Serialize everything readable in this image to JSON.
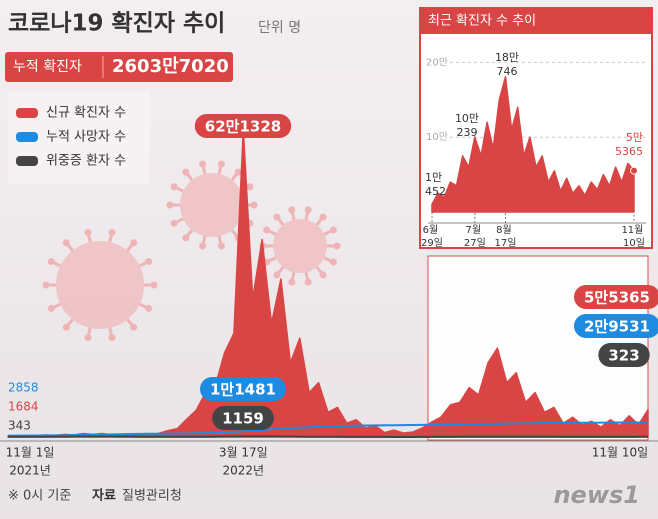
{
  "header": {
    "title": "코로나19 확진자 추이",
    "unit": "단위 명",
    "total_label": "누적 확진자",
    "total_value": "2603만7020"
  },
  "chart_data": [
    {
      "type": "line",
      "categories": [
        "11월 1일",
        null,
        null,
        null,
        null,
        null,
        null,
        null,
        null,
        null,
        null,
        null,
        null,
        null,
        null,
        null,
        null,
        null,
        null,
        null,
        null,
        null,
        null,
        null,
        null,
        "3월 17일",
        null,
        null,
        null,
        null,
        null,
        null,
        null,
        null,
        null,
        null,
        null,
        null,
        null,
        null,
        null,
        null,
        null,
        null,
        null,
        null,
        null,
        null,
        null,
        null,
        null,
        null,
        null,
        null,
        null,
        null,
        null,
        null,
        null,
        null,
        null,
        null,
        null,
        null,
        null,
        null,
        null,
        null,
        "11월 10일"
      ],
      "category_years": [
        "2021년",
        null,
        null,
        null,
        null,
        null,
        null,
        null,
        null,
        null,
        null,
        null,
        null,
        null,
        null,
        null,
        null,
        null,
        null,
        null,
        null,
        null,
        null,
        null,
        null,
        "2022년",
        null,
        null,
        null,
        null,
        null,
        null,
        null,
        null,
        null,
        null,
        null,
        null,
        null,
        null,
        null,
        null,
        null,
        null,
        null,
        null,
        null,
        null,
        null,
        null,
        null,
        null,
        null,
        null,
        null,
        null,
        null,
        null,
        null,
        null,
        null,
        null,
        null,
        null,
        null,
        null,
        null,
        null,
        null
      ],
      "ylim": [
        0,
        650000
      ],
      "series": [
        {
          "name": "신규 확진자 수",
          "color": "#d94545",
          "area": true,
          "values": [
            1684,
            1800,
            2600,
            2000,
            4000,
            3000,
            5200,
            4300,
            7100,
            5300,
            7000,
            4500,
            5800,
            3800,
            4400,
            3000,
            7500,
            13000,
            17000,
            36000,
            54000,
            90000,
            102000,
            170000,
            210000,
            621328,
            280000,
            400000,
            230000,
            320000,
            150000,
            200000,
            90000,
            110000,
            50000,
            60000,
            28000,
            35000,
            18000,
            23000,
            9000,
            14000,
            8000,
            10000,
            18000,
            30000,
            40000,
            65000,
            70000,
            100000,
            85000,
            150000,
            180000,
            110000,
            130000,
            70000,
            90000,
            50000,
            60000,
            28000,
            40000,
            24000,
            32000,
            20000,
            35000,
            23000,
            43000,
            25000,
            55365
          ],
          "value_labels": [
            null,
            null,
            null,
            null,
            null,
            null,
            null,
            null,
            null,
            null,
            null,
            null,
            null,
            null,
            null,
            null,
            null,
            null,
            null,
            null,
            null,
            null,
            null,
            null,
            null,
            "62만1328",
            null,
            null,
            null,
            null,
            null,
            null,
            null,
            null,
            null,
            null,
            null,
            null,
            null,
            null,
            null,
            null,
            null,
            null,
            null,
            null,
            null,
            null,
            null,
            null,
            null,
            null,
            null,
            null,
            null,
            null,
            null,
            null,
            null,
            null,
            null,
            null,
            null,
            null,
            null,
            null,
            null,
            null,
            "5만5365"
          ]
        },
        {
          "name": "누적 사망자 수",
          "color": "#1f8be0",
          "area": false,
          "values": [
            2858,
            2900,
            2970,
            3060,
            3180,
            3340,
            3540,
            3800,
            4100,
            4450,
            4900,
            5300,
            5700,
            6000,
            6250,
            6450,
            6650,
            6850,
            7050,
            7300,
            7600,
            8000,
            8600,
            9300,
            10300,
            11481,
            12800,
            14200,
            15600,
            16900,
            18000,
            19000,
            19900,
            20700,
            21400,
            22000,
            22500,
            22900,
            23200,
            23500,
            23750,
            23950,
            24150,
            24350,
            24550,
            24750,
            24950,
            25200,
            25450,
            25750,
            26050,
            26400,
            26750,
            27100,
            27450,
            27750,
            28000,
            28250,
            28450,
            28650,
            28800,
            28950,
            29050,
            29150,
            29250,
            29320,
            29400,
            29460,
            29531
          ],
          "value_labels": [
            null,
            null,
            null,
            null,
            null,
            null,
            null,
            null,
            null,
            null,
            null,
            null,
            null,
            null,
            null,
            null,
            null,
            null,
            null,
            null,
            null,
            null,
            null,
            null,
            null,
            "1만1481",
            null,
            null,
            null,
            null,
            null,
            null,
            null,
            null,
            null,
            null,
            null,
            null,
            null,
            null,
            null,
            null,
            null,
            null,
            null,
            null,
            null,
            null,
            null,
            null,
            null,
            null,
            null,
            null,
            null,
            null,
            null,
            null,
            null,
            null,
            null,
            null,
            null,
            null,
            null,
            null,
            null,
            null,
            "2만9531"
          ]
        },
        {
          "name": "위중증 환자 수",
          "color": "#444444",
          "area": false,
          "values": [
            343,
            400,
            480,
            580,
            700,
            800,
            900,
            1000,
            1050,
            1080,
            1050,
            1000,
            900,
            750,
            600,
            450,
            420,
            400,
            420,
            470,
            550,
            650,
            800,
            950,
            1050,
            1159,
            1250,
            1250,
            1200,
            1100,
            980,
            850,
            700,
            550,
            420,
            330,
            250,
            200,
            160,
            130,
            110,
            100,
            95,
            100,
            120,
            160,
            220,
            280,
            340,
            400,
            450,
            500,
            550,
            560,
            540,
            500,
            450,
            400,
            350,
            300,
            260,
            230,
            240,
            250,
            270,
            280,
            300,
            310,
            323
          ]
        }
      ]
    },
    {
      "type": "area",
      "title": "최근 확진자 수 추이",
      "color": "#d94545",
      "categories": [
        "6월 29일",
        null,
        null,
        null,
        null,
        null,
        null,
        "7월 27일",
        null,
        null,
        null,
        null,
        "8월 17일",
        null,
        null,
        null,
        null,
        null,
        null,
        null,
        null,
        null,
        null,
        null,
        null,
        null,
        null,
        null,
        null,
        null,
        null,
        null,
        null,
        "11월 10일"
      ],
      "ylim": [
        0,
        230000
      ],
      "yticks": [
        {
          "value": 200000,
          "label": "20만"
        },
        {
          "value": 100000,
          "label": "10만"
        }
      ],
      "grid": true,
      "values": [
        10452,
        25000,
        20000,
        40000,
        35000,
        75000,
        60000,
        100239,
        75000,
        120000,
        85000,
        150000,
        180746,
        110000,
        140000,
        75000,
        100000,
        60000,
        75000,
        40000,
        55000,
        28000,
        45000,
        25000,
        35000,
        22000,
        40000,
        30000,
        50000,
        35000,
        60000,
        40000,
        65000,
        55365
      ],
      "value_labels": [
        "1만452",
        null,
        null,
        null,
        null,
        null,
        null,
        "10만239",
        null,
        null,
        null,
        null,
        "18만746",
        null,
        null,
        null,
        null,
        null,
        null,
        null,
        null,
        null,
        null,
        null,
        null,
        null,
        null,
        null,
        null,
        null,
        null,
        null,
        null,
        "5만5365"
      ]
    }
  ],
  "footer": {
    "note": "※ 0시 기준",
    "source_label": "자료",
    "source": "질병관리청",
    "logo": "news1"
  }
}
